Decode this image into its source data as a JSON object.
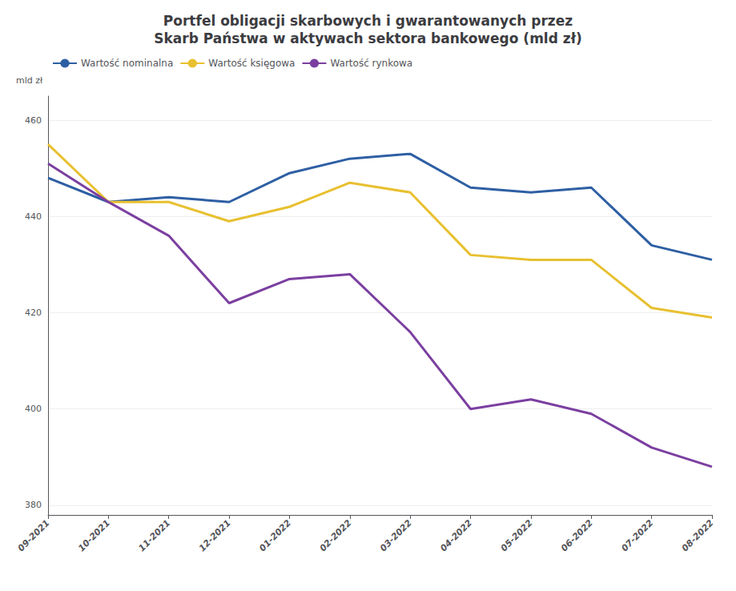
{
  "chart_data": {
    "type": "line",
    "title": "Portfel obligacji skarbowych i gwarantowanych przez\nSkarb Państwa w aktywach sektora bankowego (mld zł)",
    "ylabel": "mld zł",
    "categories": [
      "09-2021",
      "10-2021",
      "11-2021",
      "12-2021",
      "01-2022",
      "02-2022",
      "03-2022",
      "04-2022",
      "05-2022",
      "06-2022",
      "07-2022",
      "08-2022"
    ],
    "series": [
      {
        "name": "Wartość nominalna",
        "color": "#2e5fa3",
        "values": [
          448,
          443,
          444,
          443,
          449,
          452,
          453,
          446,
          445,
          446,
          434,
          431
        ]
      },
      {
        "name": "Wartość księgowa",
        "color": "#e8c030",
        "values": [
          455,
          443,
          443,
          439,
          442,
          447,
          445,
          432,
          431,
          431,
          421,
          419
        ]
      },
      {
        "name": "Wartość rynkowa",
        "color": "#7b3fa0",
        "values": [
          451,
          443,
          436,
          422,
          427,
          428,
          416,
          400,
          402,
          399,
          392,
          388
        ]
      }
    ],
    "ylim": [
      378,
      465
    ],
    "yticks": [
      380,
      400,
      420,
      440,
      460
    ],
    "grid": true,
    "legend": "upper left"
  }
}
